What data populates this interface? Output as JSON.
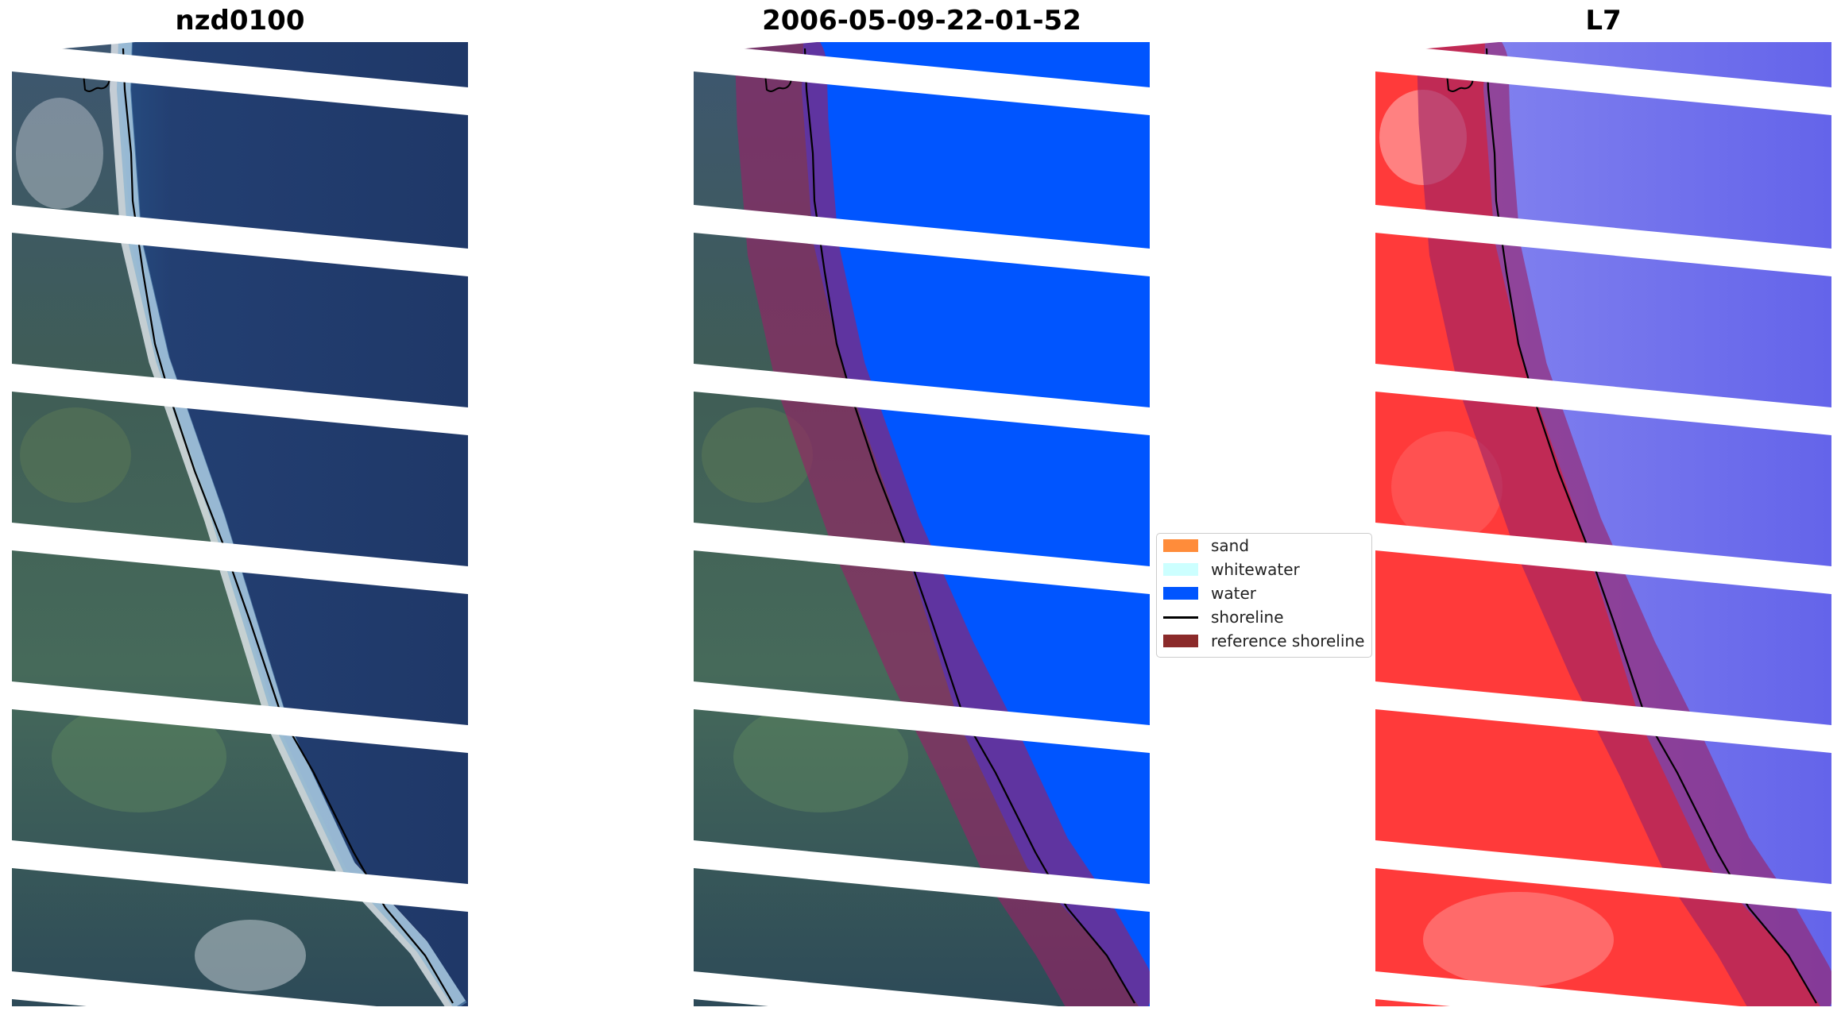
{
  "panels": [
    {
      "id": "rgb",
      "title": "nzd0100"
    },
    {
      "id": "classified",
      "title": "2006-05-09-22-01-52"
    },
    {
      "id": "index",
      "title": "L7"
    }
  ],
  "legend": {
    "placement": "center",
    "items": [
      {
        "label": "sand",
        "color": "#ff8c3a",
        "kind": "patch"
      },
      {
        "label": "whitewater",
        "color": "#ccffff",
        "kind": "patch"
      },
      {
        "label": "water",
        "color": "#0055ff",
        "kind": "patch"
      },
      {
        "label": "shoreline",
        "color": "#000000",
        "kind": "line"
      },
      {
        "label": "reference shoreline",
        "color": "#8b2a2a",
        "kind": "patch"
      }
    ]
  },
  "colors": {
    "water_class": "#0055ff",
    "sea_rgb": "#24406f",
    "land_rgb": "#3d5a55",
    "surf": "#e4e9ee",
    "index_positive": "#ff3535",
    "index_negative": "#6a6aee",
    "reference_band": "#9a2066"
  }
}
